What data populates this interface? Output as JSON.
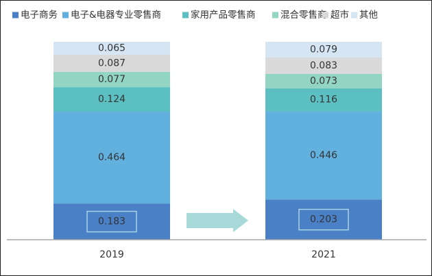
{
  "chart_data": {
    "type": "bar",
    "stacked": true,
    "categories": [
      "2019",
      "2021"
    ],
    "series": [
      {
        "name": "电子商务",
        "values": [
          0.183,
          0.203
        ],
        "color": "#4a80c6"
      },
      {
        "name": "电子&电器专业零售商",
        "values": [
          0.464,
          0.446
        ],
        "color": "#62b0de"
      },
      {
        "name": "家用产品零售商",
        "values": [
          0.124,
          0.116
        ],
        "color": "#5cbfc1"
      },
      {
        "name": "混合零售商",
        "values": [
          0.077,
          0.073
        ],
        "color": "#92d5c3"
      },
      {
        "name": "超市",
        "values": [
          0.087,
          0.083
        ],
        "color": "#d9d9d9"
      },
      {
        "name": "其他",
        "values": [
          0.065,
          0.079
        ],
        "color": "#d5e5f3"
      }
    ],
    "title": "",
    "xlabel": "",
    "ylabel": "",
    "ylim": [
      0,
      1
    ],
    "grid": false,
    "legend": "top",
    "data_labels": true,
    "axis_color": "#a6a6a6",
    "arrow_color": "#a8d9d9",
    "highlight_color": "#a9d3e6"
  }
}
